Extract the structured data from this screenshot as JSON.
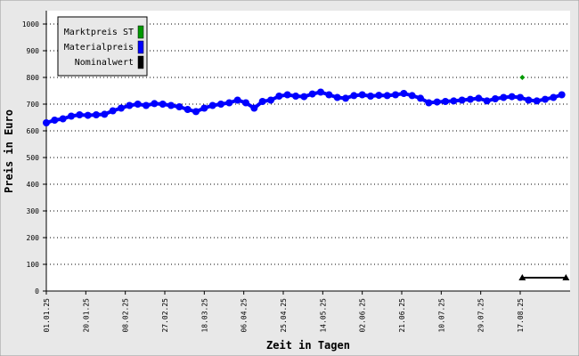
{
  "chart_data": {
    "type": "line",
    "xlabel": "Zeit in Tagen",
    "ylabel": "Preis in Euro",
    "ylim": [
      0,
      1000
    ],
    "yticks": [
      0,
      100,
      200,
      300,
      400,
      500,
      600,
      700,
      800,
      900,
      1000
    ],
    "xlim": [
      "01.01.25",
      "10.09.25"
    ],
    "xticks": [
      "01.01.25",
      "20.01.25",
      "08.02.25",
      "27.02.25",
      "18.03.25",
      "06.04.25",
      "25.04.25",
      "14.05.25",
      "02.06.25",
      "21.06.25",
      "10.07.25",
      "29.07.25",
      "17.08.25"
    ],
    "grid": true,
    "legend": "upper left",
    "series": [
      {
        "name": "Marktpreis ST",
        "color": "#009900",
        "marker": "diamond",
        "x": [
          "18.08.25"
        ],
        "values": [
          800
        ]
      },
      {
        "name": "Materialpreis",
        "color": "#0000ff",
        "marker": "circle",
        "x": [
          "01.01.25",
          "05.01.25",
          "09.01.25",
          "13.01.25",
          "17.01.25",
          "21.01.25",
          "25.01.25",
          "29.01.25",
          "02.02.25",
          "06.02.25",
          "10.02.25",
          "14.02.25",
          "18.02.25",
          "22.02.25",
          "26.02.25",
          "02.03.25",
          "06.03.25",
          "10.03.25",
          "14.03.25",
          "18.03.25",
          "22.03.25",
          "26.03.25",
          "30.03.25",
          "03.04.25",
          "07.04.25",
          "11.04.25",
          "15.04.25",
          "19.04.25",
          "23.04.25",
          "27.04.25",
          "01.05.25",
          "05.05.25",
          "09.05.25",
          "13.05.25",
          "17.05.25",
          "21.05.25",
          "25.05.25",
          "29.05.25",
          "02.06.25",
          "06.06.25",
          "10.06.25",
          "14.06.25",
          "18.06.25",
          "22.06.25",
          "26.06.25",
          "30.06.25",
          "04.07.25",
          "08.07.25",
          "12.07.25",
          "16.07.25",
          "20.07.25",
          "24.07.25",
          "28.07.25",
          "01.08.25",
          "05.08.25",
          "09.08.25",
          "13.08.25",
          "17.08.25",
          "21.08.25",
          "25.08.25",
          "29.08.25",
          "02.09.25",
          "06.09.25"
        ],
        "values": [
          630,
          640,
          645,
          655,
          660,
          658,
          660,
          662,
          675,
          685,
          695,
          700,
          695,
          702,
          700,
          695,
          690,
          680,
          672,
          685,
          695,
          700,
          705,
          715,
          705,
          685,
          710,
          715,
          730,
          735,
          730,
          728,
          738,
          745,
          735,
          725,
          722,
          732,
          735,
          730,
          733,
          732,
          735,
          740,
          732,
          722,
          705,
          708,
          710,
          712,
          715,
          718,
          722,
          712,
          720,
          725,
          728,
          725,
          715,
          712,
          718,
          725,
          735
        ]
      },
      {
        "name": "Nominalwert",
        "color": "#000000",
        "marker": "triangle",
        "x": [
          "18.08.25",
          "08.09.25"
        ],
        "values": [
          50,
          50
        ]
      }
    ]
  }
}
